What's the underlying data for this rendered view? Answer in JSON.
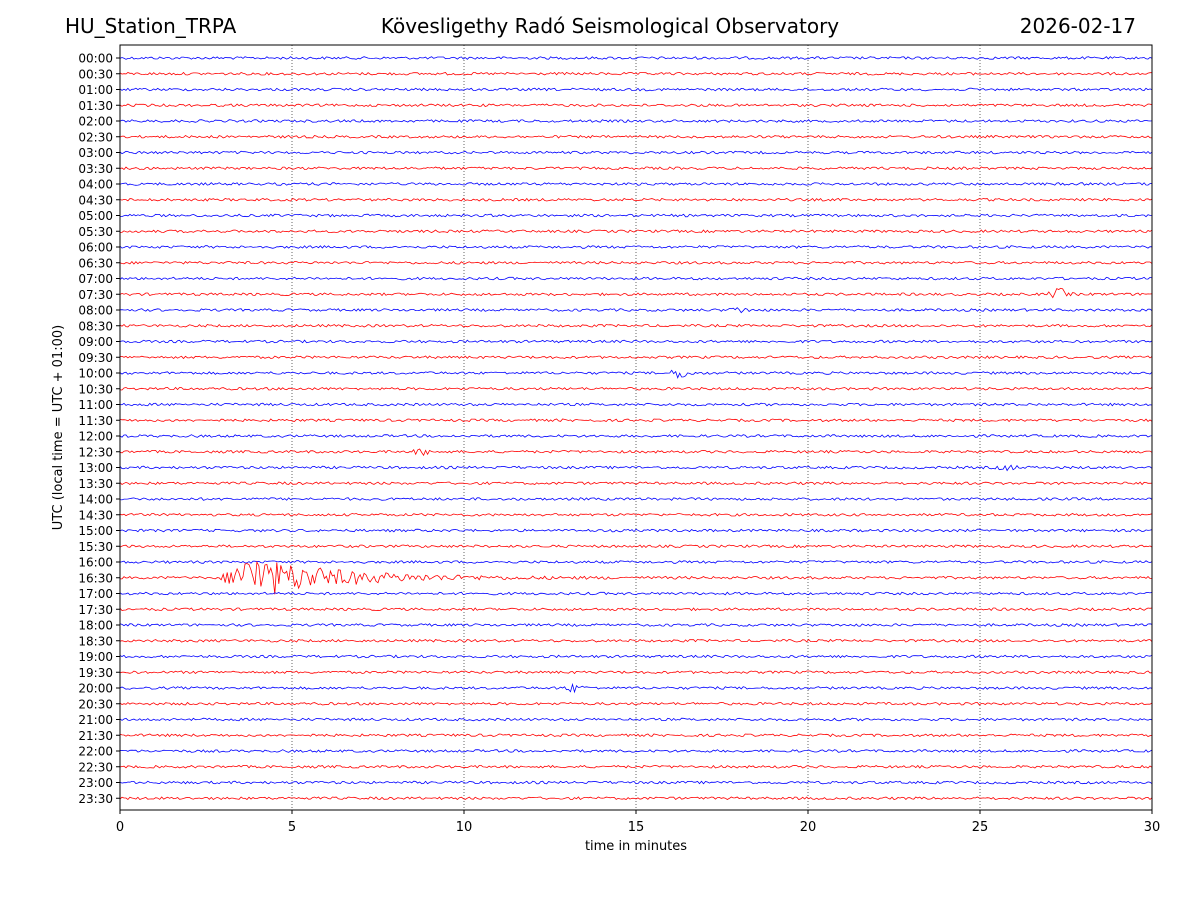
{
  "header": {
    "station": "HU_Station_TRPA",
    "title": "Kövesligethy Radó Seismological Observatory",
    "date": "2026-02-17"
  },
  "chart_data": {
    "type": "line",
    "xlabel": "time in minutes",
    "ylabel": "UTC (local time = UTC + 01:00)",
    "xlim": [
      0,
      30
    ],
    "x_ticks": [
      "0",
      "5",
      "10",
      "15",
      "20",
      "25",
      "30"
    ],
    "grid": "vertical dotted lines at each x tick",
    "row_labels": [
      "00:00",
      "00:30",
      "01:00",
      "01:30",
      "02:00",
      "02:30",
      "03:00",
      "03:30",
      "04:00",
      "04:30",
      "05:00",
      "05:30",
      "06:00",
      "06:30",
      "07:00",
      "07:30",
      "08:00",
      "08:30",
      "09:00",
      "09:30",
      "10:00",
      "10:30",
      "11:00",
      "11:30",
      "12:00",
      "12:30",
      "13:00",
      "13:30",
      "14:00",
      "14:30",
      "15:00",
      "15:30",
      "16:00",
      "16:30",
      "17:00",
      "17:30",
      "18:00",
      "18:30",
      "19:00",
      "19:30",
      "20:00",
      "20:30",
      "21:00",
      "21:30",
      "22:00",
      "22:30",
      "23:00",
      "23:30"
    ],
    "colors": {
      "even_rows": "#0000ff",
      "odd_rows": "#ff0000"
    },
    "events": [
      {
        "row": "07:30",
        "minute": 27.3,
        "amplitude": 2.5
      },
      {
        "row": "08:00",
        "minute": 18.0,
        "amplitude": 1.2
      },
      {
        "row": "10:00",
        "minute": 16.3,
        "amplitude": 2.5
      },
      {
        "row": "12:30",
        "minute": 8.8,
        "amplitude": 1.3
      },
      {
        "row": "13:00",
        "minute": 25.8,
        "amplitude": 1.3
      },
      {
        "row": "16:30",
        "minute": 3.5,
        "amplitude": 11
      },
      {
        "row": "20:00",
        "minute": 13.2,
        "amplitude": 1.8
      }
    ]
  }
}
